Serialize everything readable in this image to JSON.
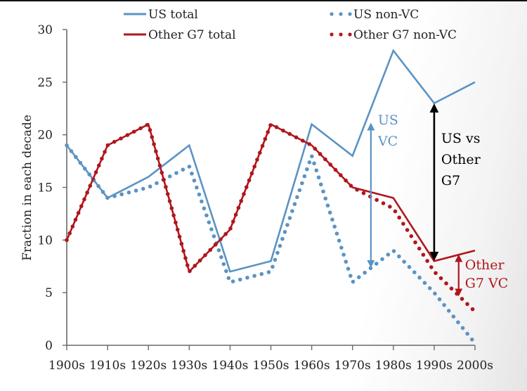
{
  "chart_data": {
    "type": "line",
    "title": "",
    "xlabel": "",
    "ylabel": "Fraction in each decade",
    "ylim": [
      0,
      30
    ],
    "yticks": [
      0,
      5,
      10,
      15,
      20,
      25,
      30
    ],
    "categories": [
      "1900s",
      "1910s",
      "1920s",
      "1930s",
      "1940s",
      "1950s",
      "1960s",
      "1970s",
      "1980s",
      "1990s",
      "2000s"
    ],
    "grid": false,
    "legend_position": "top",
    "series": [
      {
        "name": "US total",
        "style": "solid",
        "color": "#5b93c4",
        "values": [
          19,
          14,
          16,
          19,
          7,
          8,
          21,
          18,
          28,
          23,
          25
        ]
      },
      {
        "name": "Other G7 total",
        "style": "solid",
        "color": "#b0161c",
        "values": [
          10,
          19,
          21,
          7,
          11,
          21,
          19,
          15,
          14,
          8,
          9
        ]
      },
      {
        "name": "US non-VC",
        "style": "dotted",
        "color": "#5b93c4",
        "values": [
          19,
          14,
          15,
          17,
          6,
          7,
          18,
          6,
          9,
          5,
          0.2
        ]
      },
      {
        "name": "Other G7 non-VC",
        "style": "dotted",
        "color": "#b0161c",
        "values": [
          10,
          19,
          21,
          7,
          11,
          21,
          19,
          15,
          13,
          7,
          3.2
        ]
      }
    ],
    "legend": [
      {
        "label": "US total",
        "style": "solid",
        "color": "#5b93c4"
      },
      {
        "label": "US non-VC",
        "style": "dotted",
        "color": "#5b93c4"
      },
      {
        "label": "Other G7 total",
        "style": "solid",
        "color": "#b0161c"
      },
      {
        "label": "Other G7 non-VC",
        "style": "dotted",
        "color": "#b0161c"
      }
    ],
    "annotations": [
      {
        "id": "us-vc",
        "lines": [
          "US",
          "VC"
        ],
        "color": "#5b93c4",
        "arrow_x": 1974.5,
        "from": 7.5,
        "to": 21
      },
      {
        "id": "us-vs-other",
        "lines": [
          "US vs",
          "Other",
          "G7"
        ],
        "color": "#000000",
        "arrow_x": 1990,
        "from": 8.2,
        "to": 22.8
      },
      {
        "id": "other-g7-vc",
        "lines": [
          "Other",
          "G7 VC"
        ],
        "color": "#b0161c",
        "arrow_x": 1996,
        "from": 4.8,
        "to": 8.5
      }
    ]
  },
  "colors": {
    "us": "#5b93c4",
    "other_g7": "#b0161c",
    "axis": "#6b6b6b",
    "text": "#222222"
  }
}
